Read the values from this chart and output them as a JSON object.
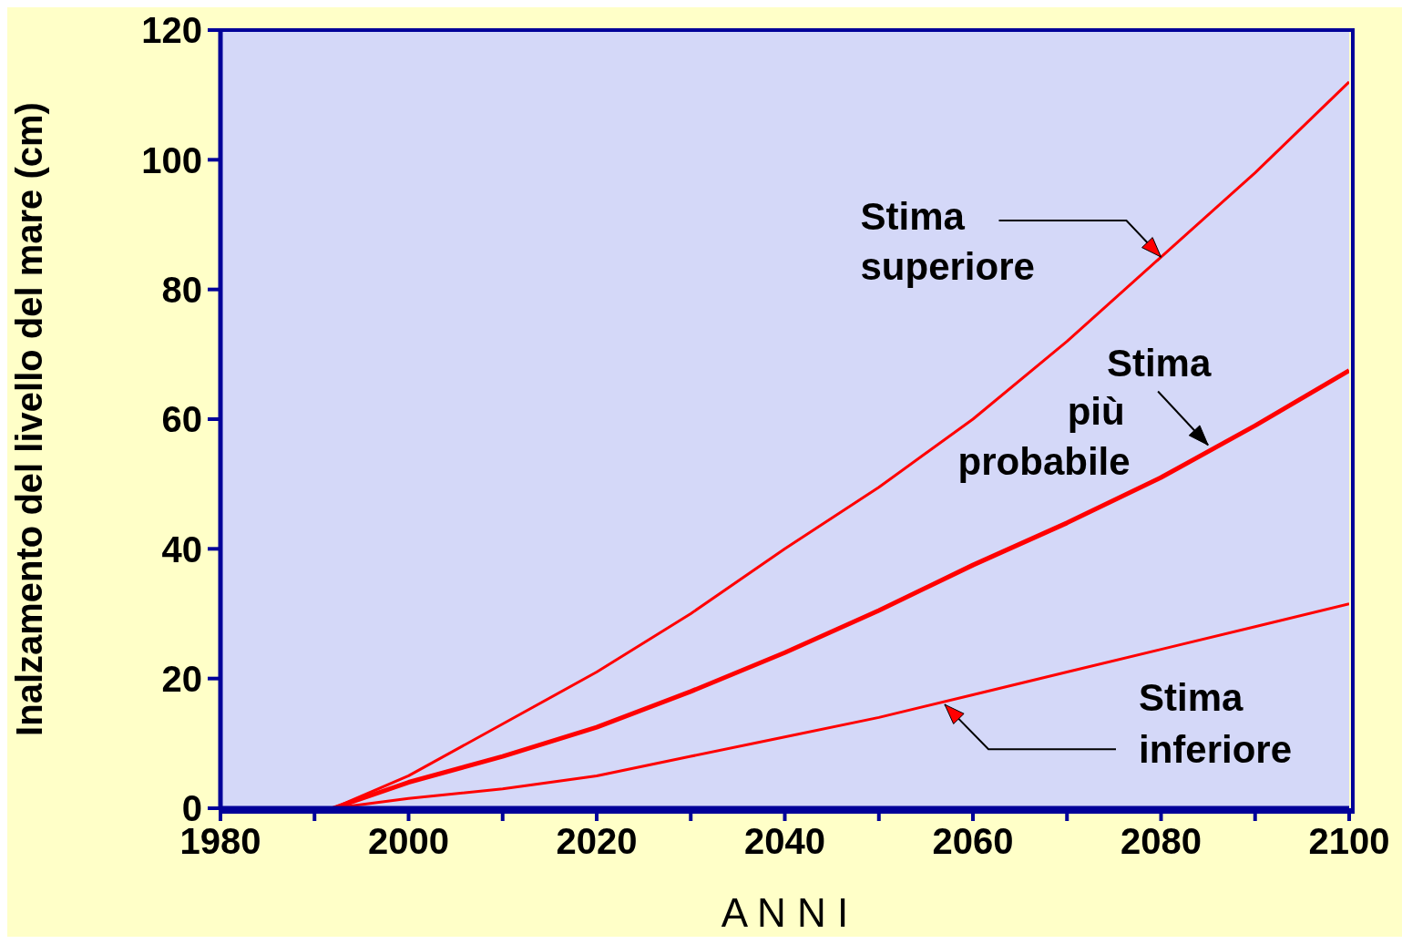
{
  "chart_data": {
    "type": "line",
    "xlabel": "A N N I",
    "ylabel": "Inalzamento del livello del mare    (cm)",
    "xlim": [
      1980,
      2100
    ],
    "xticks": [
      1980,
      {
        "value": 1990,
        "label": null
      },
      2000,
      {
        "value": 2010,
        "label": null
      },
      2020,
      {
        "value": 2030,
        "label": null
      },
      2040,
      {
        "value": 2050,
        "label": null
      },
      2060,
      {
        "value": 2070,
        "label": null
      },
      2080,
      {
        "value": 2090,
        "label": null
      },
      2100
    ],
    "ylim": [
      0,
      120
    ],
    "yticks": [
      0,
      20,
      40,
      60,
      80,
      100,
      120
    ],
    "grid": false,
    "marker": "none",
    "line_style": "solid",
    "series": [
      {
        "color": "#ff0000",
        "x": [
          1992,
          2000,
          2010,
          2020,
          2030,
          2040,
          2050,
          2060,
          2070,
          2080,
          2090,
          2100
        ],
        "values": [
          0,
          5,
          13,
          21,
          30,
          40,
          49.5,
          60,
          72,
          85,
          98,
          112
        ]
      },
      {
        "color": "#ff0000",
        "x": [
          1992,
          2000,
          2010,
          2020,
          2030,
          2040,
          2050,
          2060,
          2070,
          2080,
          2090,
          2100
        ],
        "values": [
          0,
          4,
          8,
          12.5,
          18,
          24,
          30.5,
          37.5,
          44,
          51,
          59,
          67.5
        ]
      },
      {
        "color": "#ff0000",
        "x": [
          1992,
          2000,
          2010,
          2020,
          2030,
          2040,
          2050,
          2060,
          2070,
          2080,
          2090,
          2100
        ],
        "values": [
          0,
          1.5,
          3,
          5,
          8,
          11,
          14,
          17.5,
          21,
          24.5,
          28,
          31.5
        ]
      }
    ],
    "annotations": [
      {
        "text": "Stima\nsuperiore",
        "x": 2080,
        "y": 85
      },
      {
        "text": "Stima\npiù\nprobabile",
        "x": 2085,
        "y": 56
      },
      {
        "text": "Stima\ninferiore",
        "x": 2057,
        "y": 16
      }
    ]
  }
}
